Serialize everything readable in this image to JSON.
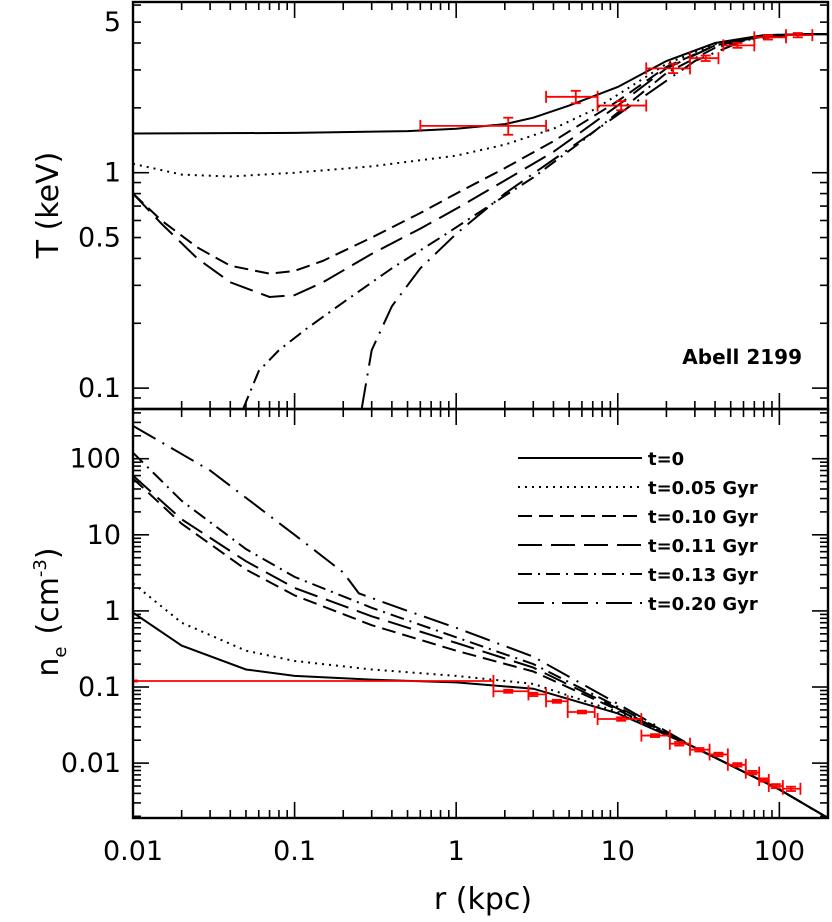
{
  "chart_data": [
    {
      "type": "line",
      "panel": "top",
      "ylabel": "T (keV)",
      "yscale": "log",
      "xscale": "log",
      "xlim": [
        0.01,
        200
      ],
      "ylim": [
        0.08,
        6.2
      ],
      "yticks": [
        {
          "v": 0.1,
          "label": "0.1"
        },
        {
          "v": 0.5,
          "label": "0.5"
        },
        {
          "v": 1,
          "label": "1"
        },
        {
          "v": 5,
          "label": "5"
        }
      ],
      "annotation": "Abell 2199",
      "series": [
        {
          "style": "solid",
          "x": [
            0.01,
            0.1,
            0.5,
            1,
            2,
            3,
            5,
            10,
            20,
            40,
            80,
            150,
            200
          ],
          "y": [
            1.52,
            1.53,
            1.56,
            1.6,
            1.68,
            1.8,
            2.05,
            2.5,
            3.3,
            4.0,
            4.35,
            4.4,
            4.4
          ]
        },
        {
          "style": "dotted",
          "x": [
            0.01,
            0.02,
            0.04,
            0.1,
            0.3,
            1,
            2,
            4,
            7,
            10,
            20,
            40,
            80,
            150,
            200
          ],
          "y": [
            1.1,
            0.98,
            0.96,
            1.0,
            1.07,
            1.2,
            1.35,
            1.6,
            1.95,
            2.3,
            3.2,
            3.95,
            4.35,
            4.4,
            4.4
          ]
        },
        {
          "style": "dashed",
          "x": [
            0.01,
            0.015,
            0.025,
            0.04,
            0.07,
            0.1,
            0.15,
            0.3,
            0.6,
            1,
            2,
            4,
            10,
            20,
            40,
            80,
            150,
            200
          ],
          "y": [
            0.8,
            0.6,
            0.45,
            0.37,
            0.34,
            0.35,
            0.39,
            0.5,
            0.65,
            0.8,
            1.05,
            1.4,
            2.15,
            3.1,
            3.9,
            4.3,
            4.4,
            4.4
          ]
        },
        {
          "style": "long-dashed",
          "x": [
            0.01,
            0.015,
            0.025,
            0.04,
            0.07,
            0.1,
            0.15,
            0.3,
            0.6,
            1,
            2,
            4,
            10,
            20,
            40,
            80,
            150,
            200
          ],
          "y": [
            0.8,
            0.58,
            0.4,
            0.31,
            0.265,
            0.27,
            0.31,
            0.42,
            0.55,
            0.68,
            0.92,
            1.25,
            2.05,
            3.05,
            3.9,
            4.3,
            4.4,
            4.4
          ]
        },
        {
          "style": "dash-dot",
          "x": [
            0.048,
            0.06,
            0.08,
            0.12,
            0.2,
            0.4,
            0.8,
            1.5,
            3,
            6,
            10,
            20,
            40,
            80,
            150,
            200
          ],
          "y": [
            0.08,
            0.12,
            0.15,
            0.19,
            0.25,
            0.36,
            0.5,
            0.68,
            0.95,
            1.4,
            1.9,
            2.9,
            3.8,
            4.3,
            4.4,
            4.4
          ]
        },
        {
          "style": "long-dash-dot",
          "x": [
            0.26,
            0.3,
            0.4,
            0.6,
            1,
            2,
            4,
            8,
            15,
            30,
            60,
            120,
            200
          ],
          "y": [
            0.08,
            0.15,
            0.24,
            0.36,
            0.52,
            0.8,
            1.15,
            1.65,
            2.3,
            3.3,
            4.1,
            4.4,
            4.4
          ]
        }
      ],
      "data_points": [
        {
          "x": 2.1,
          "y": 1.65,
          "xlo": 0.6,
          "xhi": 3.6,
          "ylo": 1.5,
          "yhi": 1.8
        },
        {
          "x": 5.5,
          "y": 2.25,
          "xlo": 3.6,
          "xhi": 7.5,
          "ylo": 2.1,
          "yhi": 2.4
        },
        {
          "x": 10.5,
          "y": 2.05,
          "xlo": 7.5,
          "xhi": 15,
          "ylo": 1.95,
          "yhi": 2.15
        },
        {
          "x": 22,
          "y": 3.05,
          "xlo": 15,
          "xhi": 28,
          "ylo": 2.9,
          "yhi": 3.2
        },
        {
          "x": 35,
          "y": 3.4,
          "xlo": 28,
          "xhi": 42,
          "ylo": 3.3,
          "yhi": 3.5
        },
        {
          "x": 55,
          "y": 3.9,
          "xlo": 45,
          "xhi": 70,
          "ylo": 3.8,
          "yhi": 4.0
        },
        {
          "x": 85,
          "y": 4.25,
          "xlo": 70,
          "xhi": 110,
          "ylo": 4.15,
          "yhi": 4.35
        },
        {
          "x": 130,
          "y": 4.35,
          "xlo": 110,
          "xhi": 160,
          "ylo": 4.25,
          "yhi": 4.45
        }
      ]
    },
    {
      "type": "line",
      "panel": "bottom",
      "xlabel": "r (kpc)",
      "ylabel_main": "n",
      "ylabel_sub": "e",
      "ylabel_unit": "(cm",
      "ylabel_exp": "-3",
      "ylabel_close": ")",
      "yscale": "log",
      "xscale": "log",
      "xlim": [
        0.01,
        200
      ],
      "ylim": [
        0.0019,
        450
      ],
      "xticks": [
        {
          "v": 0.01,
          "label": "0.01"
        },
        {
          "v": 0.1,
          "label": "0.1"
        },
        {
          "v": 1,
          "label": "1"
        },
        {
          "v": 10,
          "label": "10"
        },
        {
          "v": 100,
          "label": "100"
        }
      ],
      "yticks": [
        {
          "v": 0.01,
          "label": "0.01"
        },
        {
          "v": 0.1,
          "label": "0.1"
        },
        {
          "v": 1,
          "label": "1"
        },
        {
          "v": 10,
          "label": "10"
        },
        {
          "v": 100,
          "label": "100"
        }
      ],
      "legend_position": "top-right",
      "series": [
        {
          "name": "t=0",
          "style": "solid",
          "x": [
            0.01,
            0.02,
            0.05,
            0.1,
            0.3,
            1,
            3,
            10,
            30,
            100,
            200
          ],
          "y": [
            0.95,
            0.35,
            0.17,
            0.14,
            0.125,
            0.115,
            0.095,
            0.045,
            0.016,
            0.0045,
            0.0019
          ]
        },
        {
          "name": "t=0.05 Gyr",
          "style": "dotted",
          "x": [
            0.01,
            0.02,
            0.05,
            0.1,
            0.3,
            1,
            3,
            10,
            30,
            100,
            200
          ],
          "y": [
            2.3,
            0.7,
            0.3,
            0.22,
            0.17,
            0.14,
            0.11,
            0.047,
            0.016,
            0.0045,
            0.0019
          ]
        },
        {
          "name": "t=0.10 Gyr",
          "style": "dashed",
          "x": [
            0.01,
            0.02,
            0.05,
            0.1,
            0.3,
            1,
            3,
            10,
            30,
            100,
            200
          ],
          "y": [
            55,
            14,
            3.5,
            1.6,
            0.65,
            0.3,
            0.16,
            0.05,
            0.016,
            0.0045,
            0.0019
          ]
        },
        {
          "name": "t=0.11 Gyr",
          "style": "long-dashed",
          "x": [
            0.01,
            0.02,
            0.05,
            0.1,
            0.3,
            1,
            3,
            10,
            30,
            100,
            200
          ],
          "y": [
            60,
            16,
            4.5,
            2.0,
            0.85,
            0.38,
            0.18,
            0.052,
            0.016,
            0.0045,
            0.0019
          ]
        },
        {
          "name": "t=0.13 Gyr",
          "style": "dash-dot",
          "x": [
            0.01,
            0.02,
            0.05,
            0.1,
            0.3,
            1,
            3,
            10,
            30,
            100,
            200
          ],
          "y": [
            120,
            28,
            6.5,
            2.8,
            1.1,
            0.45,
            0.2,
            0.055,
            0.016,
            0.0045,
            0.0019
          ]
        },
        {
          "name": "t=0.20 Gyr",
          "style": "long-dash-dot",
          "x": [
            0.01,
            0.03,
            0.1,
            0.2,
            0.25,
            0.5,
            1,
            3,
            10,
            30,
            100,
            200
          ],
          "y": [
            270,
            70,
            10,
            3.2,
            1.7,
            1.0,
            0.6,
            0.25,
            0.06,
            0.016,
            0.0045,
            0.0019
          ]
        }
      ],
      "data_points": [
        {
          "x": 0.01,
          "y": 0.12,
          "xlo": 0.01,
          "xhi": 1.7,
          "ylo": 0.118,
          "yhi": 0.122
        },
        {
          "x": 2.1,
          "y": 0.088,
          "xlo": 1.7,
          "xhi": 2.8,
          "ylo": 0.084,
          "yhi": 0.092
        },
        {
          "x": 3.0,
          "y": 0.08,
          "xlo": 2.8,
          "xhi": 3.6,
          "ylo": 0.076,
          "yhi": 0.084
        },
        {
          "x": 4.2,
          "y": 0.065,
          "xlo": 3.6,
          "xhi": 4.9,
          "ylo": 0.062,
          "yhi": 0.068
        },
        {
          "x": 6.0,
          "y": 0.047,
          "xlo": 4.9,
          "xhi": 7.2,
          "ylo": 0.045,
          "yhi": 0.049
        },
        {
          "x": 10.5,
          "y": 0.038,
          "xlo": 7.5,
          "xhi": 14,
          "ylo": 0.036,
          "yhi": 0.04
        },
        {
          "x": 17,
          "y": 0.023,
          "xlo": 14,
          "xhi": 21,
          "ylo": 0.022,
          "yhi": 0.024
        },
        {
          "x": 24,
          "y": 0.018,
          "xlo": 21,
          "xhi": 28,
          "ylo": 0.017,
          "yhi": 0.019
        },
        {
          "x": 32,
          "y": 0.015,
          "xlo": 28,
          "xhi": 37,
          "ylo": 0.0142,
          "yhi": 0.0158
        },
        {
          "x": 42,
          "y": 0.013,
          "xlo": 37,
          "xhi": 48,
          "ylo": 0.0123,
          "yhi": 0.0137
        },
        {
          "x": 55,
          "y": 0.0095,
          "xlo": 48,
          "xhi": 62,
          "ylo": 0.009,
          "yhi": 0.01
        },
        {
          "x": 68,
          "y": 0.0075,
          "xlo": 62,
          "xhi": 75,
          "ylo": 0.0071,
          "yhi": 0.0079
        },
        {
          "x": 80,
          "y": 0.006,
          "xlo": 75,
          "xhi": 86,
          "ylo": 0.0057,
          "yhi": 0.0063
        },
        {
          "x": 95,
          "y": 0.005,
          "xlo": 86,
          "xhi": 105,
          "ylo": 0.0047,
          "yhi": 0.0053
        },
        {
          "x": 118,
          "y": 0.0046,
          "xlo": 105,
          "xhi": 135,
          "ylo": 0.0043,
          "yhi": 0.0049
        }
      ]
    }
  ],
  "colors": {
    "model": "#000000",
    "data": "#ff0000"
  }
}
